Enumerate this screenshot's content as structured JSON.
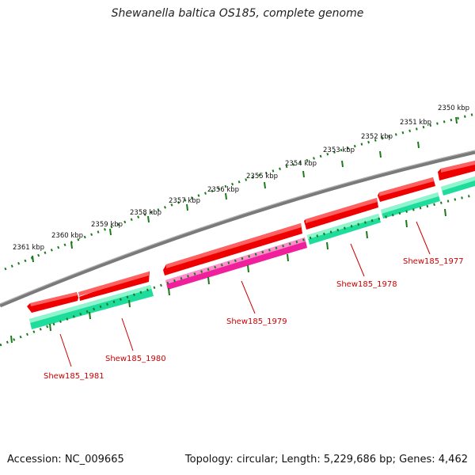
{
  "title": "Shewanella baltica OS185, complete genome",
  "footer": {
    "accession": "Accession: NC_009665",
    "summary": "Topology: circular; Length: 5,229,686 bp; Genes: 4,462"
  },
  "colors": {
    "backbone": "#7a7a7a",
    "gene_red": "#ee0000",
    "gene_teal": "#1edc9c",
    "gene_magenta": "#f0209c",
    "ticks": "#1a7a1a",
    "label": "#cc0000"
  },
  "scale_labels": [
    "2361 kbp",
    "2360 kbp",
    "2359 kbp",
    "2358 kbp",
    "2357 kbp",
    "2356 kbp",
    "2355 kbp",
    "2354 kbp",
    "2353 kbp",
    "2352 kbp",
    "2351 kbp",
    "2350 kbp"
  ],
  "gene_labels": [
    "Shew185_1981",
    "Shew185_1980",
    "Shew185_1979",
    "Shew185_1978",
    "Shew185_1977"
  ]
}
